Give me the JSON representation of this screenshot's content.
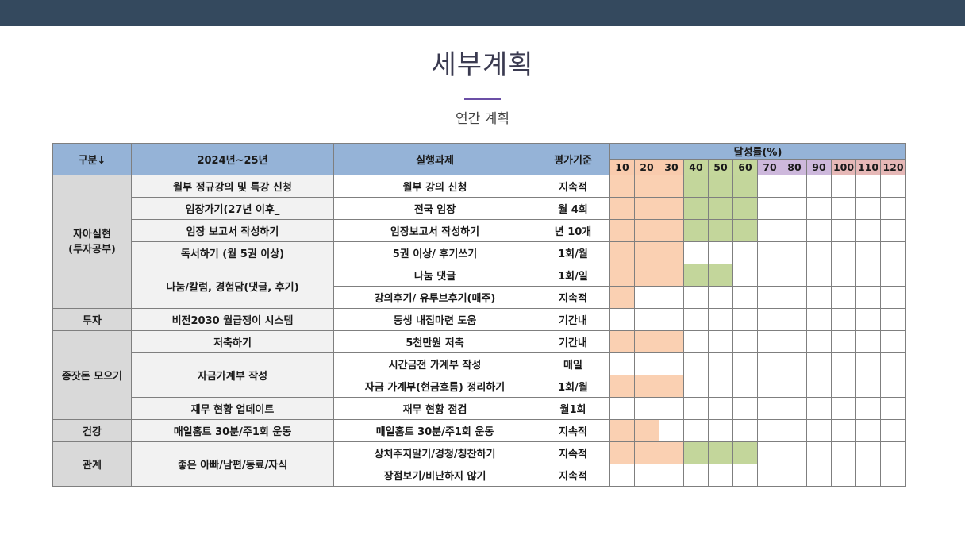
{
  "title": "세부계획",
  "subtitle": "연간 계획",
  "headers": {
    "category": "구분↓",
    "task": "2024년~25년",
    "action": "실행과제",
    "criteria": "평가기준",
    "achievement": "달성률(%)"
  },
  "percent_columns": [
    "10",
    "20",
    "30",
    "40",
    "50",
    "60",
    "70",
    "80",
    "90",
    "100",
    "110",
    "120"
  ],
  "categories": [
    "자아실현\n(투자공부)",
    "투자",
    "종잣돈 모으기",
    "건강",
    "관계"
  ],
  "tasks": [
    "월부 정규강의 및 특강 신청",
    "임장가기(27년 이후_",
    "임장 보고서 작성하기",
    "독서하기 (월 5권 이상)",
    "나눔/칼럼, 경험담(댓글, 후기)",
    "비전2030 월급쟁이 시스템",
    "저축하기",
    "자금가계부 작성",
    "재무 현황 업데이트",
    "매일홈트 30분/주1회 운동",
    "좋은 아빠/남편/동료/자식"
  ],
  "rows": [
    {
      "action": "월부 강의 신청",
      "criteria": "지속적",
      "orange": 3,
      "green": 3
    },
    {
      "action": "전국 임장",
      "criteria": "월 4회",
      "orange": 3,
      "green": 3
    },
    {
      "action": "임장보고서 작성하기",
      "criteria": "년 10개",
      "orange": 3,
      "green": 3
    },
    {
      "action": "5권 이상/ 후기쓰기",
      "criteria": "1회/월",
      "orange": 3,
      "green": 0
    },
    {
      "action": "나눔 댓글",
      "criteria": "1회/일",
      "orange": 3,
      "green": 2
    },
    {
      "action": "강의후기/ 유투브후기(매주)",
      "criteria": "지속적",
      "orange": 1,
      "green": 0
    },
    {
      "action": "동생 내집마련 도움",
      "criteria": "기간내",
      "orange": 0,
      "green": 0
    },
    {
      "action": "5천만원 저축",
      "criteria": "기간내",
      "orange": 3,
      "green": 0
    },
    {
      "action": "시간금전 가계부 작성",
      "criteria": "매일",
      "orange": 0,
      "green": 0
    },
    {
      "action": "자금 가계부(현금흐름) 정리하기",
      "criteria": "1회/월",
      "orange": 3,
      "green": 0
    },
    {
      "action": "재무 현황 점검",
      "criteria": "월1회",
      "orange": 0,
      "green": 0
    },
    {
      "action": "매일홈트 30분/주1회 운동",
      "criteria": "지속적",
      "orange": 2,
      "green": 0
    },
    {
      "action": "상처주지말기/경청/칭찬하기",
      "criteria": "지속적",
      "orange": 3,
      "green": 3
    },
    {
      "action": "장점보기/비난하지 않기",
      "criteria": "지속적",
      "orange": 0,
      "green": 0
    }
  ],
  "colors": {
    "topbar": "#34495e",
    "header_blue": "#95b3d7",
    "progress_orange": "#fad0b2",
    "progress_green": "#c3d69b",
    "accent_purple": "#6b4fa6"
  }
}
